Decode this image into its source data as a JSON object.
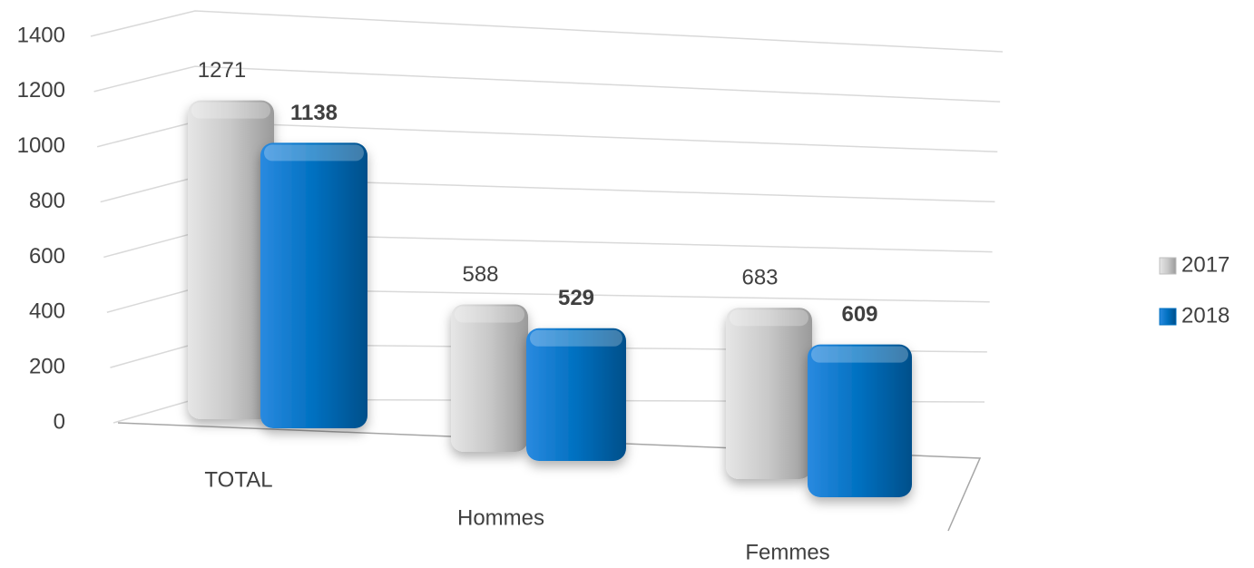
{
  "chart_data": {
    "type": "bar3d",
    "categories": [
      "TOTAL",
      "Hommes",
      "Femmes"
    ],
    "series": [
      {
        "name": "2017",
        "color": "#bfbfbf",
        "values": [
          1271,
          588,
          683
        ]
      },
      {
        "name": "2018",
        "color": "#0070c0",
        "values": [
          1138,
          529,
          609
        ]
      }
    ],
    "ylim": [
      0,
      1400
    ],
    "yticks": [
      0,
      200,
      400,
      600,
      800,
      1000,
      1200,
      1400
    ],
    "grid": true,
    "legend": "right"
  }
}
